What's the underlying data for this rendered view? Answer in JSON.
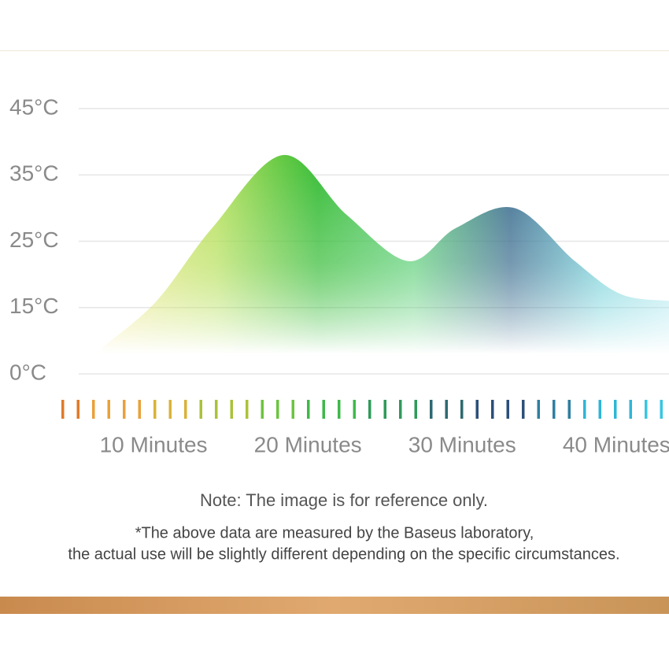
{
  "chart_data": {
    "type": "area",
    "x": [
      6.7,
      10.2,
      13.8,
      18.4,
      22.5,
      26.5,
      29.6,
      33.4,
      37.3,
      40.3,
      43.4
    ],
    "values": [
      6,
      16,
      27,
      38,
      29,
      22,
      27,
      30,
      22,
      17,
      16
    ],
    "xlim": [
      0,
      43.4
    ],
    "xticks": [
      {
        "value": 10,
        "label": "10 Minutes"
      },
      {
        "value": 20,
        "label": "20 Minutes"
      },
      {
        "value": 30,
        "label": "30 Minutes"
      },
      {
        "value": 40,
        "label": "40 Minutes"
      }
    ],
    "ylim": [
      0,
      45
    ],
    "yticks": [
      {
        "value": 0,
        "label": "0°C"
      },
      {
        "value": 15,
        "label": "15°C"
      },
      {
        "value": 25,
        "label": "25°C"
      },
      {
        "value": 35,
        "label": "35°C"
      },
      {
        "value": 45,
        "label": "45°C"
      }
    ],
    "grid": true
  },
  "notes": {
    "reference": "Note: The image is for reference only.",
    "disclaimer": [
      "*The above data are measured by the Baseus laboratory,",
      "the actual use will be slightly different depending on the specific circumstances."
    ]
  }
}
